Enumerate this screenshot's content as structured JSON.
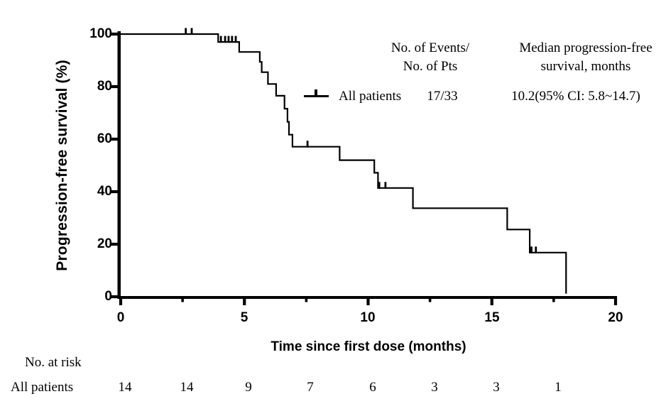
{
  "figure": {
    "y_axis_title": "Progression-free survival (%)",
    "x_axis_title": "Time since first dose (months)",
    "legend": {
      "col_events_header_line1": "No. of Events/",
      "col_events_header_line2": "No. of Pts",
      "col_median_header_line1": "Median progression-free",
      "col_median_header_line2": "survival, months",
      "series_label": "All patients",
      "events_value": "17/33",
      "median_value": "10.2(95% CI: 5.8~14.7)"
    },
    "risk_table": {
      "title": "No. at risk",
      "row_label": "All patients",
      "values": [
        "14",
        "14",
        "9",
        "7",
        "6",
        "3",
        "3",
        "1"
      ]
    }
  },
  "chart_data": {
    "type": "line",
    "subtype": "kaplan-meier-step-curve",
    "title": "",
    "xlabel": "Time since first dose (months)",
    "ylabel": "Progression-free survival (%)",
    "xlim": [
      0,
      20
    ],
    "ylim": [
      0,
      100
    ],
    "x_ticks": [
      0,
      5,
      10,
      15,
      20
    ],
    "x_minor_ticks": [
      2.5,
      7.5,
      12.5,
      17.5
    ],
    "y_ticks": [
      100,
      80,
      60,
      40,
      20,
      0
    ],
    "grid": false,
    "legend_position": "top-right-inside",
    "line_color": "#000000",
    "series": [
      {
        "name": "All patients",
        "events_per_pts": "17/33",
        "median_pfs_months": 10.2,
        "median_pfs_ci": "95% CI: 5.8~14.7",
        "start": {
          "t": 0,
          "s": 100
        },
        "steps": [
          {
            "t": 3.94,
            "s": 97.0
          },
          {
            "t": 4.79,
            "s": 93.2
          },
          {
            "t": 5.62,
            "s": 89.4
          },
          {
            "t": 5.7,
            "s": 85.5
          },
          {
            "t": 5.95,
            "s": 81.0
          },
          {
            "t": 6.28,
            "s": 76.5
          },
          {
            "t": 6.62,
            "s": 71.6
          },
          {
            "t": 6.74,
            "s": 66.6
          },
          {
            "t": 6.8,
            "s": 61.7
          },
          {
            "t": 6.94,
            "s": 57.1
          },
          {
            "t": 8.85,
            "s": 52.0
          },
          {
            "t": 10.25,
            "s": 47.2
          },
          {
            "t": 10.4,
            "s": 41.4
          },
          {
            "t": 11.81,
            "s": 33.7
          },
          {
            "t": 15.62,
            "s": 25.6
          },
          {
            "t": 16.53,
            "s": 16.8
          },
          {
            "t": 18.0,
            "s": 1.2
          }
        ],
        "censor_times": [
          2.63,
          2.87,
          4.05,
          4.22,
          4.36,
          4.5,
          4.65,
          7.55,
          10.45,
          10.7,
          16.6,
          16.78
        ]
      }
    ],
    "risk_table": {
      "label": "All patients",
      "times": [
        0,
        2.5,
        5,
        7.5,
        10,
        12.5,
        15,
        17.5
      ],
      "at_risk": [
        14,
        14,
        9,
        7,
        6,
        3,
        3,
        1
      ]
    }
  }
}
